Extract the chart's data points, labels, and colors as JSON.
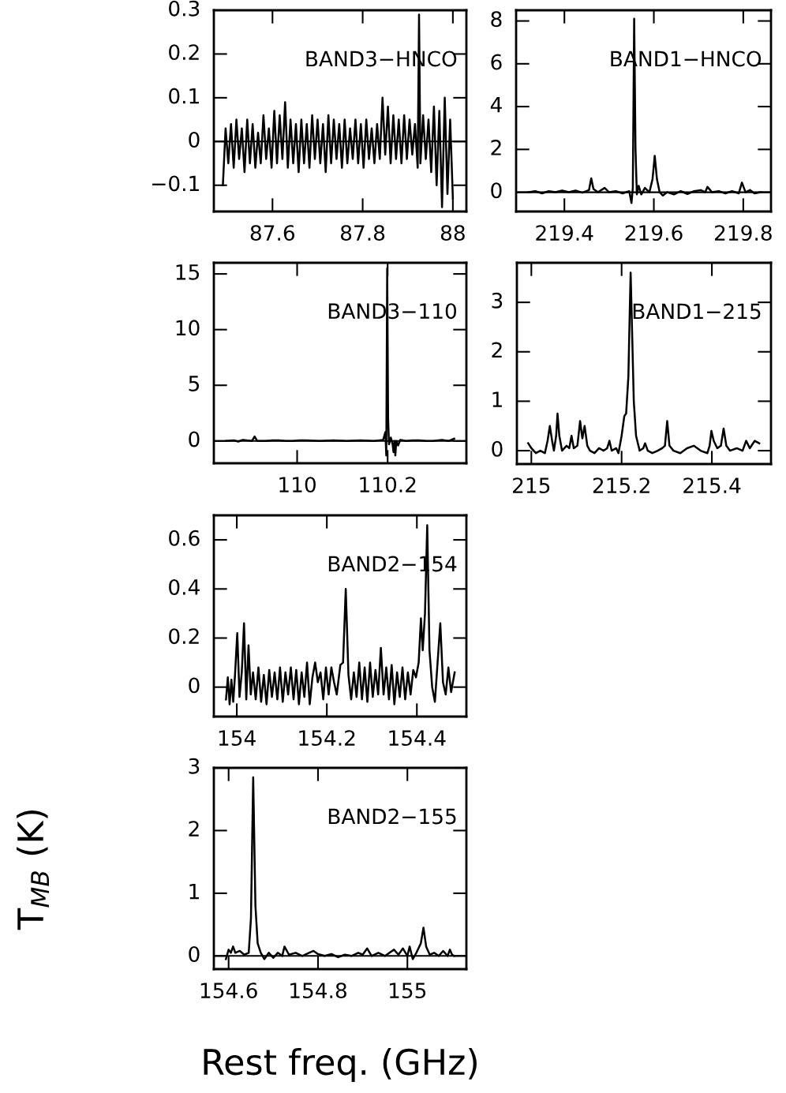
{
  "chart_data": [
    {
      "type": "line",
      "title": "BAND3−HNCO",
      "xlim": [
        87.47,
        88.03
      ],
      "ylim": [
        -0.16,
        0.3
      ],
      "xticks": [
        87.6,
        87.8,
        88
      ],
      "yticks": [
        {
          "value": -0.1,
          "label": "−0.1"
        },
        0,
        0.1,
        0.2,
        0.3
      ],
      "ref_lines": [
        {
          "axis": "y",
          "value": 0
        }
      ],
      "series": [
        {
          "color": "#000000",
          "x": [
            87.49,
            87.496,
            87.502,
            87.508,
            87.514,
            87.52,
            87.526,
            87.532,
            87.538,
            87.544,
            87.55,
            87.556,
            87.562,
            87.568,
            87.574,
            87.58,
            87.586,
            87.592,
            87.598,
            87.604,
            87.61,
            87.616,
            87.622,
            87.628,
            87.634,
            87.64,
            87.646,
            87.652,
            87.658,
            87.664,
            87.67,
            87.676,
            87.682,
            87.688,
            87.694,
            87.7,
            87.706,
            87.712,
            87.718,
            87.724,
            87.73,
            87.736,
            87.742,
            87.748,
            87.754,
            87.76,
            87.766,
            87.772,
            87.778,
            87.784,
            87.79,
            87.796,
            87.802,
            87.808,
            87.814,
            87.82,
            87.826,
            87.832,
            87.838,
            87.844,
            87.85,
            87.856,
            87.862,
            87.868,
            87.874,
            87.88,
            87.886,
            87.892,
            87.898,
            87.904,
            87.91,
            87.916,
            87.922,
            87.925,
            87.928,
            87.934,
            87.94,
            87.946,
            87.952,
            87.958,
            87.964,
            87.97,
            87.976,
            87.982,
            87.988,
            87.994,
            88.0
          ],
          "values": [
            -0.1,
            0.03,
            -0.05,
            0.04,
            -0.06,
            0.05,
            -0.04,
            0.03,
            -0.07,
            0.05,
            -0.05,
            0.04,
            -0.06,
            0.02,
            -0.05,
            0.06,
            -0.04,
            0.03,
            -0.06,
            0.07,
            -0.05,
            0.06,
            -0.04,
            0.09,
            -0.06,
            0.05,
            -0.05,
            0.04,
            -0.07,
            0.05,
            -0.05,
            0.04,
            -0.06,
            0.06,
            -0.04,
            0.05,
            -0.05,
            0.04,
            -0.07,
            0.06,
            -0.05,
            0.05,
            -0.04,
            0.04,
            -0.06,
            0.05,
            -0.05,
            0.03,
            -0.04,
            0.05,
            -0.05,
            0.04,
            -0.06,
            0.05,
            -0.04,
            0.03,
            -0.05,
            0.04,
            -0.04,
            0.1,
            -0.03,
            0.08,
            -0.05,
            0.06,
            -0.04,
            0.05,
            -0.05,
            0.06,
            -0.04,
            0.05,
            -0.03,
            0.04,
            -0.06,
            0.29,
            -0.05,
            0.06,
            -0.04,
            0.05,
            -0.07,
            0.08,
            -0.1,
            0.07,
            -0.15,
            0.1,
            -0.12,
            0.05,
            -0.13
          ]
        }
      ]
    },
    {
      "type": "line",
      "title": "BAND1−HNCO",
      "xlim": [
        219.292,
        219.862
      ],
      "ylim": [
        -0.9,
        8.5
      ],
      "xticks": [
        219.4,
        219.6,
        219.8
      ],
      "yticks": [
        0,
        2,
        4,
        6,
        8
      ],
      "ref_lines": [
        {
          "axis": "y",
          "value": 0
        }
      ],
      "series": [
        {
          "color": "#000000",
          "x": [
            219.32,
            219.335,
            219.35,
            219.365,
            219.38,
            219.395,
            219.41,
            219.425,
            219.44,
            219.455,
            219.46,
            219.465,
            219.475,
            219.49,
            219.5,
            219.515,
            219.53,
            219.545,
            219.55,
            219.553,
            219.556,
            219.559,
            219.562,
            219.566,
            219.572,
            219.58,
            219.59,
            219.597,
            219.602,
            219.607,
            219.613,
            219.62,
            219.63,
            219.645,
            219.66,
            219.675,
            219.69,
            219.705,
            219.715,
            219.72,
            219.73,
            219.745,
            219.76,
            219.775,
            219.79,
            219.797,
            219.805,
            219.815,
            219.825,
            219.84
          ],
          "values": [
            0.0,
            0.05,
            -0.05,
            0.05,
            0.0,
            0.08,
            0.0,
            0.08,
            -0.02,
            0.1,
            0.65,
            0.15,
            0.0,
            0.2,
            0.0,
            0.05,
            -0.05,
            0.05,
            -0.5,
            0.2,
            8.1,
            2.0,
            -0.1,
            0.3,
            -0.1,
            0.2,
            0.0,
            0.6,
            1.7,
            0.6,
            0.0,
            -0.15,
            0.0,
            -0.1,
            0.05,
            -0.08,
            0.05,
            0.1,
            0.0,
            0.25,
            0.0,
            0.05,
            -0.05,
            0.05,
            -0.05,
            0.45,
            0.0,
            0.1,
            -0.05,
            0.0
          ]
        }
      ]
    },
    {
      "type": "line",
      "title": "BAND3−110",
      "xlim": [
        109.816,
        110.374
      ],
      "ylim": [
        -2,
        16
      ],
      "xticks": [
        110,
        110.2
      ],
      "yticks": [
        0,
        5,
        10,
        15
      ],
      "ref_lines": [
        {
          "axis": "y",
          "value": 0
        }
      ],
      "series": [
        {
          "color": "#000000",
          "x": [
            109.843,
            109.86,
            109.87,
            109.88,
            109.9,
            109.906,
            109.912,
            109.93,
            109.945,
            109.96,
            109.975,
            109.99,
            110.005,
            110.02,
            110.05,
            110.08,
            110.11,
            110.14,
            110.17,
            110.19,
            110.195,
            110.197,
            110.199,
            110.201,
            110.203,
            110.207,
            110.211,
            110.213,
            110.215,
            110.217,
            110.219,
            110.223,
            110.228,
            110.24,
            110.255,
            110.27,
            110.285,
            110.3,
            110.32,
            110.335,
            110.347
          ],
          "values": [
            0.0,
            0.05,
            -0.05,
            0.1,
            0.0,
            0.4,
            0.0,
            0.0,
            0.05,
            0.05,
            0.0,
            0.0,
            0.05,
            0.05,
            0.0,
            0.05,
            0.0,
            0.05,
            0.0,
            0.1,
            0.8,
            -1.3,
            15.5,
            2.0,
            -0.3,
            0.3,
            -0.3,
            -1.0,
            0.0,
            -1.3,
            0.0,
            -0.4,
            0.1,
            0.0,
            0.05,
            0.05,
            0.0,
            0.0,
            0.1,
            0.0,
            0.2
          ]
        }
      ]
    },
    {
      "type": "line",
      "title": "BAND1−215",
      "xlim": [
        214.968,
        215.531
      ],
      "ylim": [
        -0.27,
        3.8
      ],
      "xticks": [
        215,
        215.2,
        215.4
      ],
      "yticks": [
        0,
        1,
        2,
        3
      ],
      "series": [
        {
          "color": "#000000",
          "x": [
            214.993,
            215.0,
            215.01,
            215.02,
            215.03,
            215.036,
            215.041,
            215.046,
            215.05,
            215.055,
            215.058,
            215.062,
            215.068,
            215.078,
            215.084,
            215.089,
            215.094,
            215.102,
            215.108,
            215.113,
            215.118,
            215.124,
            215.13,
            215.14,
            215.15,
            215.16,
            215.168,
            215.173,
            215.178,
            215.188,
            215.193,
            215.2,
            215.206,
            215.21,
            215.215,
            215.218,
            215.22,
            215.223,
            215.227,
            215.232,
            215.24,
            215.248,
            215.252,
            215.258,
            215.268,
            215.28,
            215.29,
            215.296,
            215.301,
            215.306,
            215.315,
            215.33,
            215.345,
            215.36,
            215.375,
            215.39,
            215.395,
            215.399,
            215.404,
            215.412,
            215.42,
            215.426,
            215.432,
            215.44,
            215.455,
            215.468,
            215.476,
            215.484,
            215.495,
            215.505
          ],
          "values": [
            0.15,
            0.05,
            -0.05,
            0.0,
            -0.05,
            0.2,
            0.5,
            0.2,
            0.0,
            0.3,
            0.75,
            0.3,
            0.0,
            0.1,
            0.05,
            0.3,
            0.05,
            0.1,
            0.6,
            0.25,
            0.5,
            0.1,
            0.0,
            -0.05,
            0.05,
            0.0,
            0.05,
            0.2,
            0.0,
            0.05,
            -0.05,
            0.3,
            0.7,
            0.75,
            1.5,
            2.8,
            3.6,
            2.5,
            1.0,
            0.3,
            0.0,
            0.05,
            0.15,
            0.0,
            -0.05,
            0.0,
            0.05,
            0.1,
            0.6,
            0.1,
            0.0,
            -0.05,
            0.05,
            0.1,
            0.0,
            -0.05,
            0.1,
            0.4,
            0.2,
            0.05,
            0.1,
            0.45,
            0.1,
            0.0,
            0.05,
            0.0,
            0.2,
            0.05,
            0.2,
            0.15
          ]
        }
      ]
    },
    {
      "type": "line",
      "title": "BAND2−154",
      "xlim": [
        153.949,
        154.51
      ],
      "ylim": [
        -0.12,
        0.7
      ],
      "xticks": [
        154,
        154.2,
        154.4
      ],
      "yticks": [
        0,
        0.2,
        0.4,
        0.6
      ],
      "series": [
        {
          "color": "#000000",
          "x": [
            153.976,
            153.98,
            153.984,
            153.988,
            153.992,
            153.996,
            154.001,
            154.006,
            154.011,
            154.016,
            154.021,
            154.026,
            154.031,
            154.036,
            154.042,
            154.048,
            154.054,
            154.06,
            154.066,
            154.072,
            154.078,
            154.084,
            154.09,
            154.096,
            154.102,
            154.108,
            154.114,
            154.12,
            154.126,
            154.132,
            154.138,
            154.144,
            154.15,
            154.156,
            154.162,
            154.168,
            154.174,
            154.18,
            154.186,
            154.192,
            154.198,
            154.204,
            154.21,
            154.216,
            154.222,
            154.23,
            154.236,
            154.242,
            154.248,
            154.254,
            154.26,
            154.266,
            154.272,
            154.278,
            154.284,
            154.29,
            154.296,
            154.302,
            154.308,
            154.314,
            154.32,
            154.326,
            154.332,
            154.338,
            154.344,
            154.35,
            154.356,
            154.362,
            154.368,
            154.374,
            154.38,
            154.386,
            154.392,
            154.398,
            154.404,
            154.409,
            154.413,
            154.418,
            154.423,
            154.428,
            154.434,
            154.44,
            154.446,
            154.452,
            154.458,
            154.464,
            154.47,
            154.476,
            154.484
          ],
          "values": [
            -0.05,
            0.04,
            -0.07,
            0.03,
            -0.06,
            0.05,
            0.22,
            -0.04,
            0.06,
            0.26,
            -0.05,
            0.17,
            -0.03,
            0.06,
            -0.05,
            0.08,
            -0.06,
            0.05,
            -0.07,
            0.07,
            -0.04,
            0.06,
            -0.05,
            0.08,
            -0.06,
            0.06,
            -0.03,
            0.08,
            -0.05,
            0.07,
            -0.07,
            0.06,
            -0.04,
            0.1,
            -0.07,
            0.04,
            0.1,
            0.02,
            0.06,
            -0.05,
            0.08,
            -0.03,
            0.08,
            0.02,
            -0.03,
            0.09,
            0.1,
            0.4,
            0.05,
            -0.05,
            0.06,
            -0.04,
            0.1,
            -0.05,
            0.08,
            -0.06,
            0.1,
            -0.04,
            0.07,
            -0.03,
            0.16,
            -0.03,
            0.08,
            -0.05,
            0.09,
            -0.07,
            0.06,
            -0.04,
            0.08,
            -0.05,
            0.06,
            -0.03,
            0.07,
            0.04,
            0.1,
            0.28,
            0.15,
            0.3,
            0.66,
            0.15,
            0.0,
            -0.06,
            0.1,
            0.26,
            0.02,
            -0.03,
            0.08,
            -0.02,
            0.06
          ]
        }
      ]
    },
    {
      "type": "line",
      "title": "BAND2−155",
      "xlabel": "Rest freq. (GHz)",
      "ylabel": "T$_{MB}$ (K)",
      "xlim": [
        154.567,
        155.132
      ],
      "ylim": [
        -0.21,
        3.0
      ],
      "xticks": [
        154.6,
        154.8,
        155
      ],
      "yticks": [
        0,
        1,
        2,
        3
      ],
      "ref_lines": [
        {
          "axis": "y",
          "value": 0
        }
      ],
      "series": [
        {
          "color": "#000000",
          "x": [
            154.594,
            154.6,
            154.605,
            154.61,
            154.615,
            154.625,
            154.635,
            154.645,
            154.65,
            154.655,
            154.66,
            154.665,
            154.672,
            154.68,
            154.69,
            154.7,
            154.71,
            154.72,
            154.725,
            154.735,
            154.75,
            154.765,
            154.78,
            154.79,
            154.8,
            154.815,
            154.83,
            154.845,
            154.86,
            154.875,
            154.89,
            154.9,
            154.91,
            154.92,
            154.935,
            154.95,
            154.96,
            154.97,
            154.98,
            154.99,
            155.0,
            155.005,
            155.012,
            155.02,
            155.03,
            155.036,
            155.042,
            155.05,
            155.06,
            155.07,
            155.08,
            155.09,
            155.095,
            155.1,
            155.105
          ],
          "values": [
            -0.05,
            0.1,
            0.05,
            0.15,
            0.05,
            0.08,
            0.02,
            0.05,
            0.6,
            2.85,
            0.8,
            0.2,
            0.05,
            -0.05,
            0.05,
            -0.03,
            0.05,
            0.0,
            0.15,
            0.02,
            0.05,
            0.0,
            0.05,
            0.08,
            0.03,
            0.0,
            0.03,
            -0.02,
            0.02,
            0.0,
            0.05,
            0.02,
            0.12,
            0.0,
            0.05,
            0.0,
            0.05,
            0.1,
            0.02,
            0.12,
            0.0,
            0.15,
            -0.05,
            0.05,
            0.2,
            0.45,
            0.15,
            0.02,
            0.05,
            0.0,
            0.08,
            0.0,
            0.1,
            0.02,
            0.0
          ]
        }
      ]
    }
  ]
}
